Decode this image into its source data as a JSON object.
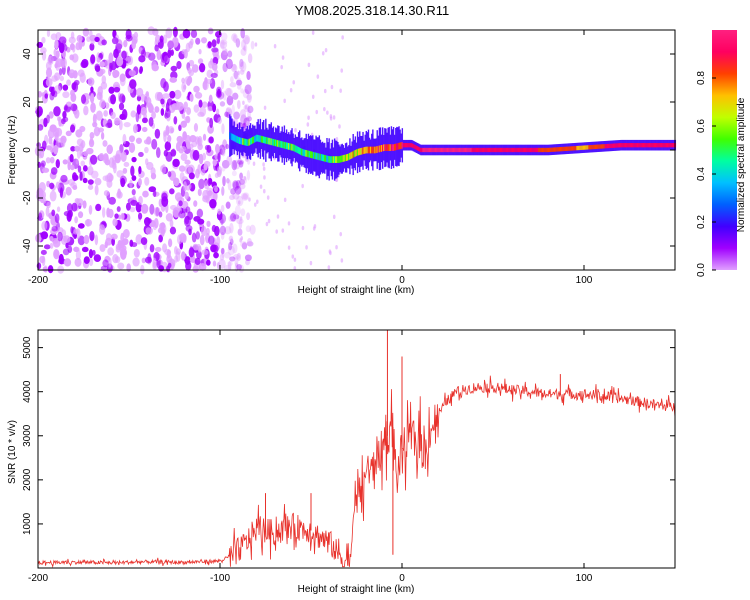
{
  "title": "YM08.2025.318.14.30.R11",
  "chart_data": [
    {
      "type": "heatmap",
      "panel": "spectrogram",
      "xlabel": "Height of straight line (km)",
      "ylabel": "Frequency (Hz)",
      "xlim": [
        -200,
        150
      ],
      "ylim": [
        -50,
        50
      ],
      "x_ticks": [
        -200,
        -100,
        0,
        100
      ],
      "x_tick_labels": [
        "-200",
        "-100",
        "0",
        "100"
      ],
      "y_ticks": [
        -40,
        -20,
        0,
        20,
        40
      ],
      "y_tick_labels": [
        "-40",
        "-20",
        "0",
        "20",
        "40"
      ],
      "colorbar": {
        "label": "Normalized spectral amplitude",
        "range": [
          0.0,
          1.0
        ],
        "ticks": [
          0.0,
          0.2,
          0.4,
          0.6,
          0.8
        ],
        "tick_labels": [
          "0.0",
          "0.2",
          "0.4",
          "0.6",
          "0.8"
        ],
        "colors": [
          "#e0a0ff",
          "#a000ff",
          "#4000ff",
          "#0060ff",
          "#00c0ff",
          "#00ffa0",
          "#40ff00",
          "#c0ff00",
          "#ffc000",
          "#ff4000",
          "#ff0060",
          "#ff2080"
        ]
      },
      "ridge": {
        "x": [
          -95,
          -90,
          -85,
          -80,
          -75,
          -70,
          -65,
          -60,
          -55,
          -50,
          -45,
          -40,
          -35,
          -30,
          -25,
          -20,
          -15,
          -10,
          -5,
          0,
          5,
          10,
          20,
          40,
          60,
          80,
          100,
          120,
          150
        ],
        "y": [
          6,
          4,
          3,
          5,
          4,
          3,
          2,
          1,
          -1,
          -2,
          -3,
          -4,
          -4,
          -3,
          -1,
          0,
          0,
          1,
          1,
          2,
          2,
          0,
          0,
          0,
          0,
          0,
          1,
          2,
          2
        ],
        "amplitude": [
          0.35,
          0.45,
          0.5,
          0.45,
          0.5,
          0.55,
          0.5,
          0.55,
          0.5,
          0.5,
          0.45,
          0.5,
          0.6,
          0.65,
          0.7,
          0.75,
          0.8,
          0.85,
          0.9,
          0.9,
          0.95,
          0.95,
          1.0,
          0.95,
          0.9,
          0.85,
          0.75,
          0.95,
          0.95
        ]
      },
      "noise_region_x": [
        -200,
        -90
      ]
    },
    {
      "type": "line",
      "panel": "snr",
      "xlabel": "Height of straight line (km)",
      "ylabel": "SNR (10 * v/v)",
      "xlim": [
        -200,
        150
      ],
      "ylim": [
        0,
        5400
      ],
      "x_ticks": [
        -200,
        -100,
        0,
        100
      ],
      "x_tick_labels": [
        "-200",
        "-100",
        "0",
        "100"
      ],
      "y_ticks": [
        1000,
        2000,
        3000,
        4000,
        5000
      ],
      "y_tick_labels": [
        "1000",
        "2000",
        "3000",
        "4000",
        "5000"
      ],
      "color": "#e8312b",
      "series": [
        {
          "name": "SNR",
          "x": [
            -200,
            -180,
            -160,
            -140,
            -120,
            -100,
            -95,
            -90,
            -85,
            -80,
            -75,
            -70,
            -65,
            -60,
            -55,
            -50,
            -45,
            -40,
            -35,
            -30,
            -27,
            -25,
            -22,
            -20,
            -17,
            -15,
            -12,
            -10,
            -8,
            -5,
            -3,
            0,
            3,
            5,
            8,
            10,
            12,
            15,
            20,
            25,
            30,
            40,
            50,
            60,
            80,
            100,
            120,
            140,
            150
          ],
          "y": [
            120,
            130,
            120,
            140,
            130,
            160,
            250,
            400,
            600,
            900,
            850,
            800,
            900,
            950,
            900,
            850,
            700,
            600,
            300,
            150,
            600,
            2000,
            1500,
            2300,
            2100,
            2500,
            2600,
            2800,
            3000,
            3200,
            2000,
            2700,
            2800,
            3000,
            2800,
            2900,
            2500,
            3100,
            3500,
            3800,
            4000,
            4100,
            4100,
            4050,
            3950,
            3950,
            3850,
            3700,
            3650
          ],
          "spikes": [
            {
              "x": -8,
              "y": 5400
            },
            {
              "x": -5,
              "y": 300
            },
            {
              "x": 0,
              "y": 4800
            },
            {
              "x": -75,
              "y": 1700
            },
            {
              "x": -50,
              "y": 1700
            },
            {
              "x": 87,
              "y": 4400
            }
          ]
        }
      ]
    }
  ]
}
